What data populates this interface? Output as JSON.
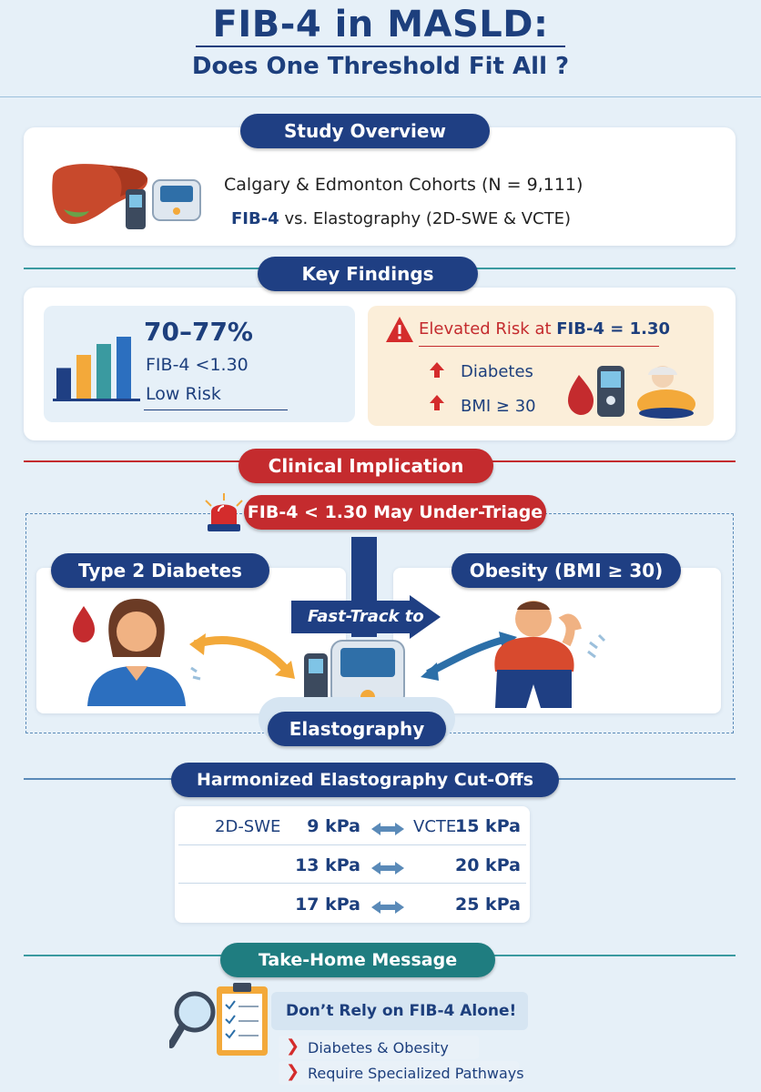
{
  "header": {
    "title": "FIB-4 in MASLD:",
    "subtitle": "Does One Threshold Fit All ?"
  },
  "overview": {
    "heading": "Study Overview",
    "cohorts": "Calgary & Edmonton Cohorts (N = 9,111)",
    "comparison_fib4": "FIB-4",
    "comparison_vs": " vs. Elastography (2D-SWE & VCTE)"
  },
  "findings": {
    "heading": "Key Findings",
    "percent": "70–77%",
    "threshold": "FIB-4 <1.30",
    "risk": "Low Risk",
    "bars": [
      0.42,
      0.6,
      0.75,
      0.85
    ],
    "elevated_prefix": "Elevated Risk at ",
    "elevated_value": "FIB-4 = 1.30",
    "factor1": "Diabetes",
    "factor2": "BMI ≥ 30"
  },
  "clinical": {
    "heading": "Clinical Implication",
    "alert": "FIB-4 < 1.30 May Under-Triage",
    "left_label": "Type 2 Diabetes",
    "right_label": "Obesity (BMI ≥ 30)",
    "fast_track": "Fast-Track to",
    "target": "Elastography"
  },
  "cutoffs": {
    "heading": "Harmonized Elastography Cut-Offs",
    "col1_label": "2D-SWE",
    "col2_label": "VCTE",
    "rows": [
      {
        "swe": "9 kPa",
        "vcte": "15 kPa"
      },
      {
        "swe": "13 kPa",
        "vcte": "20 kPa"
      },
      {
        "swe": "17 kPa",
        "vcte": "25 kPa"
      }
    ]
  },
  "takehome": {
    "heading": "Take-Home Message",
    "main": "Don’t Rely on FIB-4 Alone!",
    "point1": "Diabetes & Obesity",
    "point2": "Require Specialized Pathways"
  },
  "colors": {
    "navy": "#1f3f83",
    "red": "#c42b2e",
    "teal": "#1f7d80",
    "orange": "#f3a93a"
  }
}
